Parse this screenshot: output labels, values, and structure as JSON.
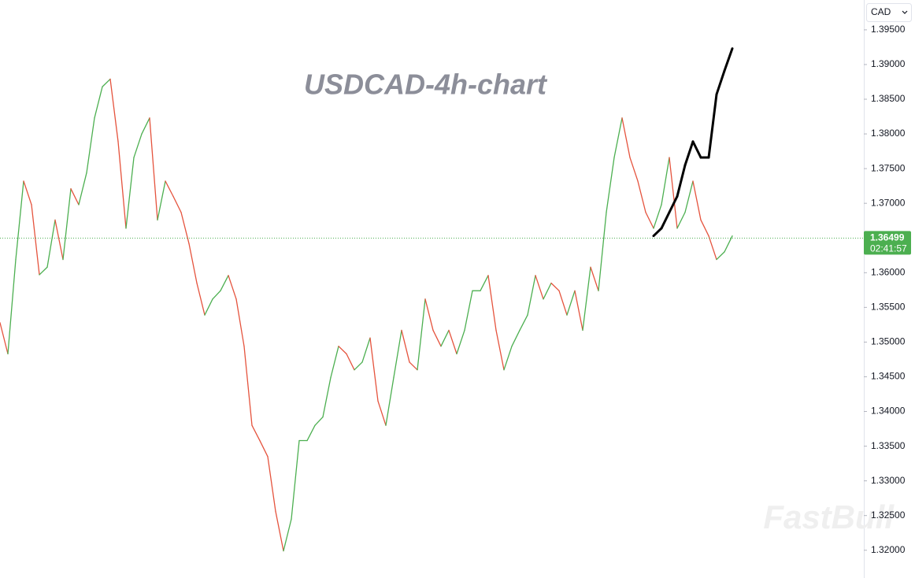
{
  "chart_data": {
    "type": "line",
    "title": "USDCAD-4h-chart",
    "watermark": "FastBull",
    "currency": "CAD",
    "last_price": {
      "value": 1.36499,
      "label": "1.36499"
    },
    "countdown": "02:41:57",
    "up_color": "#4caf50",
    "down_color": "#e5533d",
    "ylim": [
      1.316,
      1.3993
    ],
    "yticks": [
      {
        "value": 1.32,
        "label": "1.32000"
      },
      {
        "value": 1.325,
        "label": "1.32500"
      },
      {
        "value": 1.33,
        "label": "1.33000"
      },
      {
        "value": 1.335,
        "label": "1.33500"
      },
      {
        "value": 1.34,
        "label": "1.34000"
      },
      {
        "value": 1.345,
        "label": "1.34500"
      },
      {
        "value": 1.35,
        "label": "1.35000"
      },
      {
        "value": 1.355,
        "label": "1.35500"
      },
      {
        "value": 1.36,
        "label": "1.36000"
      },
      {
        "value": 1.365,
        "label": "1.36500"
      },
      {
        "value": 1.37,
        "label": "1.37000"
      },
      {
        "value": 1.375,
        "label": "1.37500"
      },
      {
        "value": 1.38,
        "label": "1.38000"
      },
      {
        "value": 1.385,
        "label": "1.38500"
      },
      {
        "value": 1.39,
        "label": "1.39000"
      },
      {
        "value": 1.395,
        "label": "1.39500"
      }
    ],
    "series": [
      {
        "color": "two-tone",
        "values": [
          1.3528,
          1.3483,
          1.3619,
          1.3732,
          1.3698,
          1.3597,
          1.3608,
          1.3676,
          1.3619,
          1.3721,
          1.3698,
          1.3744,
          1.3823,
          1.3868,
          1.3879,
          1.3789,
          1.3664,
          1.3766,
          1.38,
          1.3823,
          1.3676,
          1.3732,
          1.371,
          1.3687,
          1.3642,
          1.3585,
          1.3539,
          1.3562,
          1.3574,
          1.3596,
          1.3562,
          1.3494,
          1.338,
          1.3358,
          1.3335,
          1.3256,
          1.3199,
          1.3245,
          1.3358,
          1.3358,
          1.338,
          1.3392,
          1.3449,
          1.3494,
          1.3483,
          1.346,
          1.3471,
          1.3506,
          1.3415,
          1.338,
          1.3449,
          1.3517,
          1.3471,
          1.346,
          1.3562,
          1.3517,
          1.3494,
          1.3517,
          1.3483,
          1.3517,
          1.3574,
          1.3574,
          1.3596,
          1.3517,
          1.346,
          1.3494,
          1.3517,
          1.3539,
          1.3596,
          1.3562,
          1.3585,
          1.3574,
          1.3539,
          1.3574,
          1.3517,
          1.3608,
          1.3574,
          1.3687,
          1.3766,
          1.3823,
          1.3766,
          1.3732,
          1.3687,
          1.3664,
          1.3698,
          1.3766,
          1.3664,
          1.3687,
          1.3732,
          1.3676,
          1.3653,
          1.3619,
          1.363,
          1.3653,
          null,
          null,
          null,
          null,
          null,
          null,
          null,
          null,
          null,
          null
        ]
      },
      {
        "color": "#000000",
        "values": [
          null,
          null,
          null,
          null,
          null,
          null,
          null,
          null,
          null,
          null,
          null,
          null,
          null,
          null,
          null,
          null,
          null,
          null,
          null,
          null,
          null,
          null,
          null,
          null,
          null,
          null,
          null,
          null,
          null,
          null,
          null,
          null,
          null,
          null,
          null,
          null,
          null,
          null,
          null,
          null,
          null,
          null,
          null,
          null,
          null,
          null,
          null,
          null,
          null,
          null,
          null,
          null,
          null,
          null,
          null,
          null,
          null,
          null,
          null,
          null,
          null,
          null,
          null,
          null,
          null,
          null,
          null,
          null,
          null,
          null,
          null,
          null,
          null,
          null,
          null,
          null,
          null,
          null,
          null,
          null,
          null,
          null,
          null,
          1.3653,
          1.3664,
          1.3687,
          1.371,
          1.3755,
          1.3789,
          1.3766,
          1.3766,
          1.3857,
          1.3891,
          1.3923
        ]
      }
    ]
  }
}
